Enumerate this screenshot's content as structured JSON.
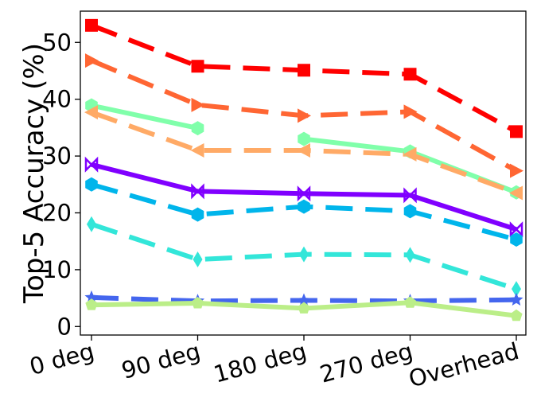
{
  "chart_data": {
    "type": "line",
    "title": "",
    "xlabel": "",
    "ylabel": "Top-5 Accuracy (%)",
    "categories": [
      "0 deg",
      "90 deg",
      "180 deg",
      "270 deg",
      "Overhead"
    ],
    "ylim": [
      -1.5,
      55.5
    ],
    "yticks": [
      0,
      10,
      20,
      30,
      40,
      50
    ],
    "grid": false,
    "legend": "none",
    "series": [
      {
        "values": [
          53.0,
          45.8,
          45.1,
          44.4,
          34.3
        ],
        "color": "#ff0000",
        "marker": "square",
        "dash": "long"
      },
      {
        "values": [
          46.8,
          39.0,
          37.1,
          37.8,
          27.4
        ],
        "color": "#ff6633",
        "marker": "triangle-right",
        "dash": "long"
      },
      {
        "values": [
          38.9,
          34.9,
          null,
          null,
          null
        ],
        "color": "#80ffaa",
        "marker": "hexagon",
        "dash": "solid"
      },
      {
        "values": [
          null,
          null,
          33.0,
          30.8,
          23.6
        ],
        "color": "#80ffaa",
        "marker": "hexagon",
        "dash": "solid"
      },
      {
        "values": [
          37.7,
          31.0,
          31.0,
          30.3,
          23.5
        ],
        "color": "#ffaa66",
        "marker": "triangle-left",
        "dash": "long"
      },
      {
        "values": [
          28.5,
          23.8,
          23.4,
          23.1,
          17.1
        ],
        "color": "#8000ff",
        "marker": "bowtie",
        "dash": "solid"
      },
      {
        "values": [
          25.0,
          19.7,
          21.1,
          20.3,
          15.3
        ],
        "color": "#00b5eb",
        "marker": "hexagon",
        "dash": "long"
      },
      {
        "values": [
          18.0,
          11.8,
          12.7,
          12.6,
          6.6
        ],
        "color": "#33e6d9",
        "marker": "diamond",
        "dash": "long"
      },
      {
        "values": [
          5.1,
          4.5,
          4.6,
          4.5,
          4.7
        ],
        "color": "#4466ee",
        "marker": "star",
        "dash": "long"
      },
      {
        "values": [
          3.8,
          4.1,
          3.2,
          4.2,
          1.9
        ],
        "color": "#bbee88",
        "marker": "pentagon",
        "dash": "solid"
      }
    ]
  }
}
